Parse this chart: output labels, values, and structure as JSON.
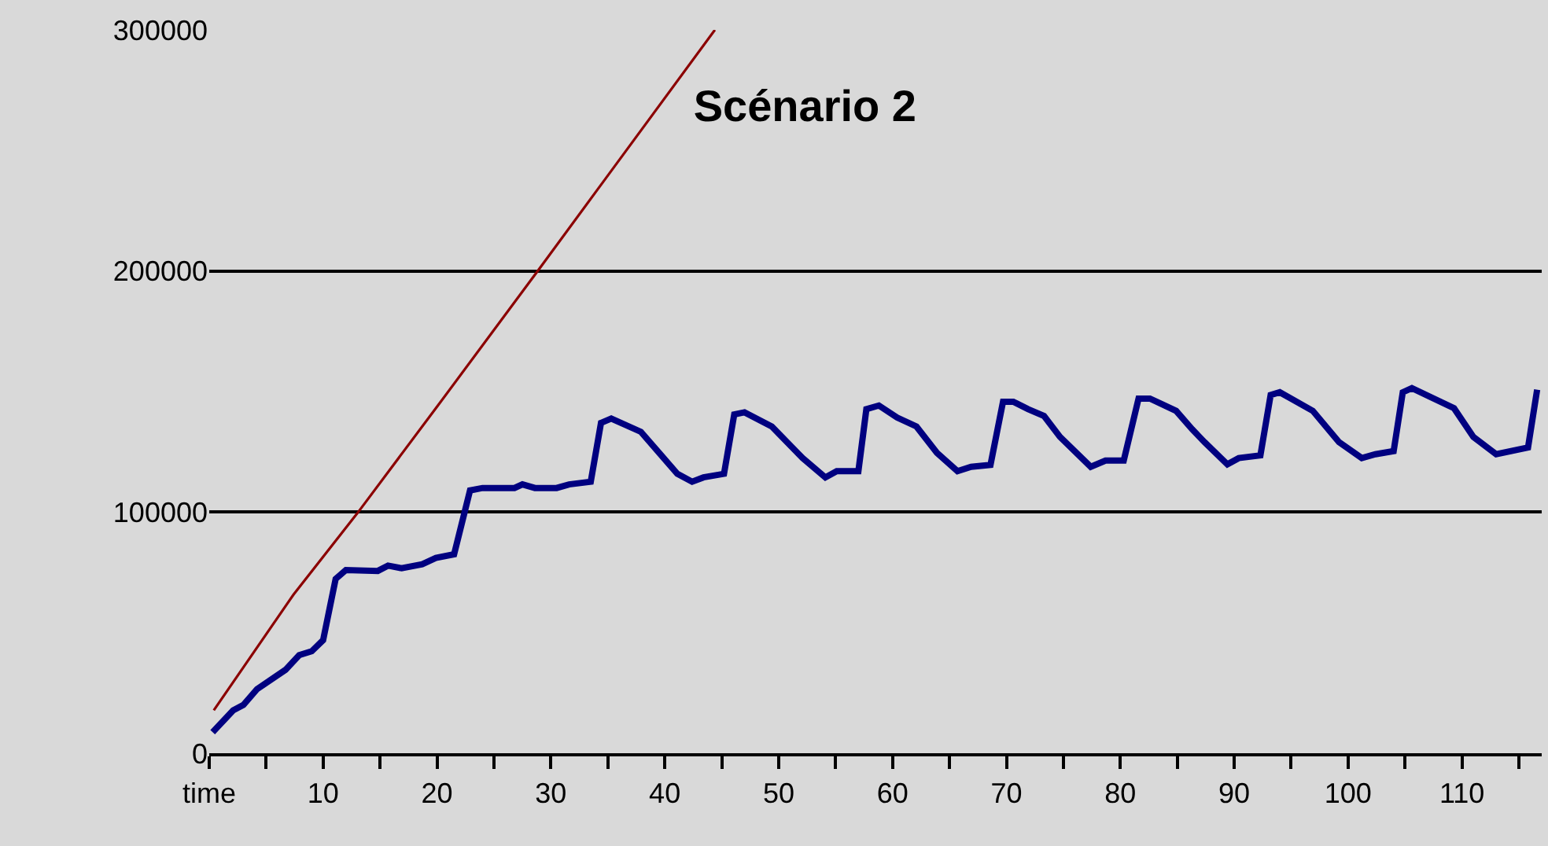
{
  "chart_data": {
    "type": "line",
    "title": "Scénario 2",
    "grid": "y",
    "marker": "none",
    "line_style": "solid",
    "xlim": [
      0,
      117
    ],
    "ylim": [
      0,
      300000
    ],
    "xticks": [
      {
        "value": 0,
        "label": "time"
      },
      {
        "value": 5,
        "label": null
      },
      10,
      {
        "value": 15,
        "label": null
      },
      20,
      {
        "value": 25,
        "label": null
      },
      30,
      {
        "value": 35,
        "label": null
      },
      40,
      {
        "value": 45,
        "label": null
      },
      50,
      {
        "value": 55,
        "label": null
      },
      60,
      {
        "value": 65,
        "label": null
      },
      70,
      {
        "value": 75,
        "label": null
      },
      80,
      {
        "value": 85,
        "label": null
      },
      90,
      {
        "value": 95,
        "label": null
      },
      100,
      {
        "value": 105,
        "label": null
      },
      110,
      {
        "value": 115,
        "label": null
      }
    ],
    "yticks": [
      0,
      100000,
      200000,
      300000
    ],
    "series": [
      {
        "color": "#8b0000",
        "x": [
          0.4,
          7.4,
          13.0,
          20.0,
          28.9,
          44.4
        ],
        "values": [
          17800,
          65800,
          99500,
          143700,
          200400,
          300000
        ]
      },
      {
        "color": "#000080",
        "x": [
          0.3,
          2.1,
          3.0,
          4.2,
          6.7,
          7.9,
          9.0,
          10.0,
          11.1,
          12.0,
          14.8,
          15.7,
          16.9,
          18.7,
          19.9,
          21.5,
          22.9,
          24.0,
          26.8,
          27.5,
          28.6,
          30.5,
          31.6,
          33.5,
          34.4,
          35.3,
          37.9,
          39.5,
          41.1,
          42.4,
          43.4,
          45.2,
          46.1,
          47.0,
          49.4,
          52.1,
          54.1,
          55.1,
          57.0,
          57.7,
          58.8,
          60.4,
          62.1,
          63.9,
          65.7,
          66.9,
          68.6,
          69.7,
          70.6,
          71.9,
          73.3,
          74.7,
          77.4,
          78.7,
          80.3,
          81.6,
          82.6,
          84.9,
          86.3,
          87.4,
          89.4,
          90.4,
          92.3,
          93.2,
          94.0,
          96.9,
          99.2,
          101.2,
          102.4,
          104.0,
          104.8,
          105.6,
          109.3,
          111.0,
          113.0,
          115.8,
          116.6
        ],
        "values": [
          8700,
          17800,
          20000,
          26600,
          34600,
          40700,
          42300,
          46900,
          72300,
          76000,
          75600,
          77800,
          76700,
          78400,
          81000,
          82500,
          109000,
          110000,
          110000,
          111500,
          110000,
          110000,
          111500,
          112600,
          137000,
          138800,
          133300,
          124600,
          115900,
          112600,
          114400,
          115900,
          140500,
          141400,
          135500,
          122400,
          114400,
          117000,
          117000,
          142700,
          144200,
          139200,
          135500,
          124600,
          117000,
          118800,
          119600,
          145800,
          145800,
          142700,
          139900,
          131200,
          118800,
          121400,
          121400,
          147100,
          147100,
          142000,
          134400,
          129000,
          119800,
          122400,
          123500,
          148600,
          149700,
          142000,
          129000,
          122400,
          124000,
          125300,
          149700,
          151400,
          143100,
          131200,
          124000,
          126800,
          150800
        ]
      }
    ]
  }
}
